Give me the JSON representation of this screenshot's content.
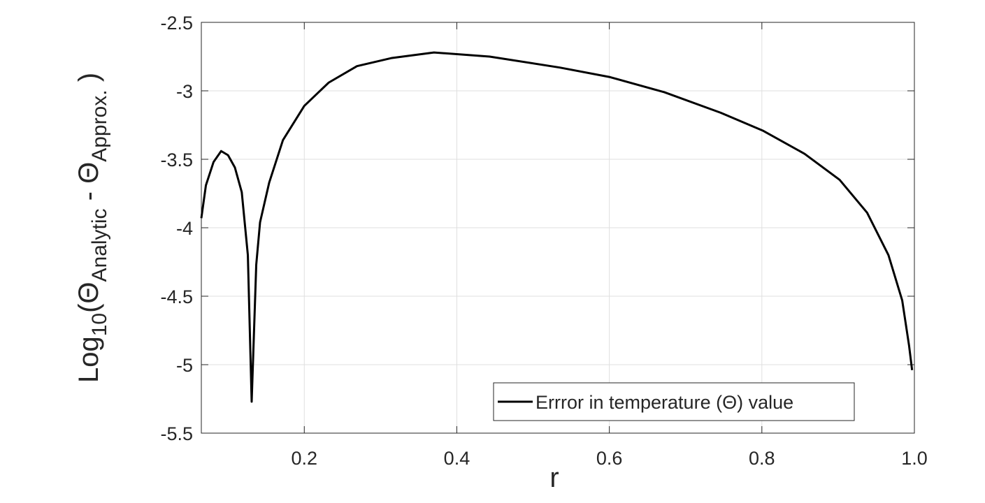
{
  "chart_data": {
    "type": "line",
    "xlabel": "r",
    "ylabel": [
      "Log",
      "10",
      "(Θ",
      "Analytic",
      " - Θ",
      "Approx.",
      " )"
    ],
    "xlim": [
      0.065,
      1.0
    ],
    "ylim": [
      -5.5,
      -2.5
    ],
    "xticks": [
      0.2,
      0.4,
      0.6,
      0.8,
      {
        "value": 1.0,
        "label": "1.0"
      }
    ],
    "yticks": [
      -5.5,
      -5,
      -4.5,
      -4,
      -3.5,
      -3,
      -2.5
    ],
    "grid": true,
    "legend": "lower right",
    "x": [
      0.065,
      0.071,
      0.081,
      0.091,
      0.1,
      0.109,
      0.118,
      0.126,
      0.131,
      0.137,
      0.142,
      0.154,
      0.172,
      0.2,
      0.232,
      0.269,
      0.315,
      0.37,
      0.443,
      0.535,
      0.601,
      0.672,
      0.746,
      0.801,
      0.856,
      0.902,
      0.938,
      0.966,
      0.984,
      0.993,
      0.997
    ],
    "series": [
      {
        "name": "Errror in temperature (Θ) value",
        "color": "#000000",
        "values": [
          -3.93,
          -3.69,
          -3.52,
          -3.44,
          -3.47,
          -3.56,
          -3.74,
          -4.2,
          -5.27,
          -4.27,
          -3.96,
          -3.67,
          -3.36,
          -3.11,
          -2.94,
          -2.82,
          -2.76,
          -2.72,
          -2.75,
          -2.83,
          -2.9,
          -3.01,
          -3.16,
          -3.29,
          -3.46,
          -3.65,
          -3.89,
          -4.2,
          -4.53,
          -4.86,
          -5.04
        ]
      }
    ]
  }
}
